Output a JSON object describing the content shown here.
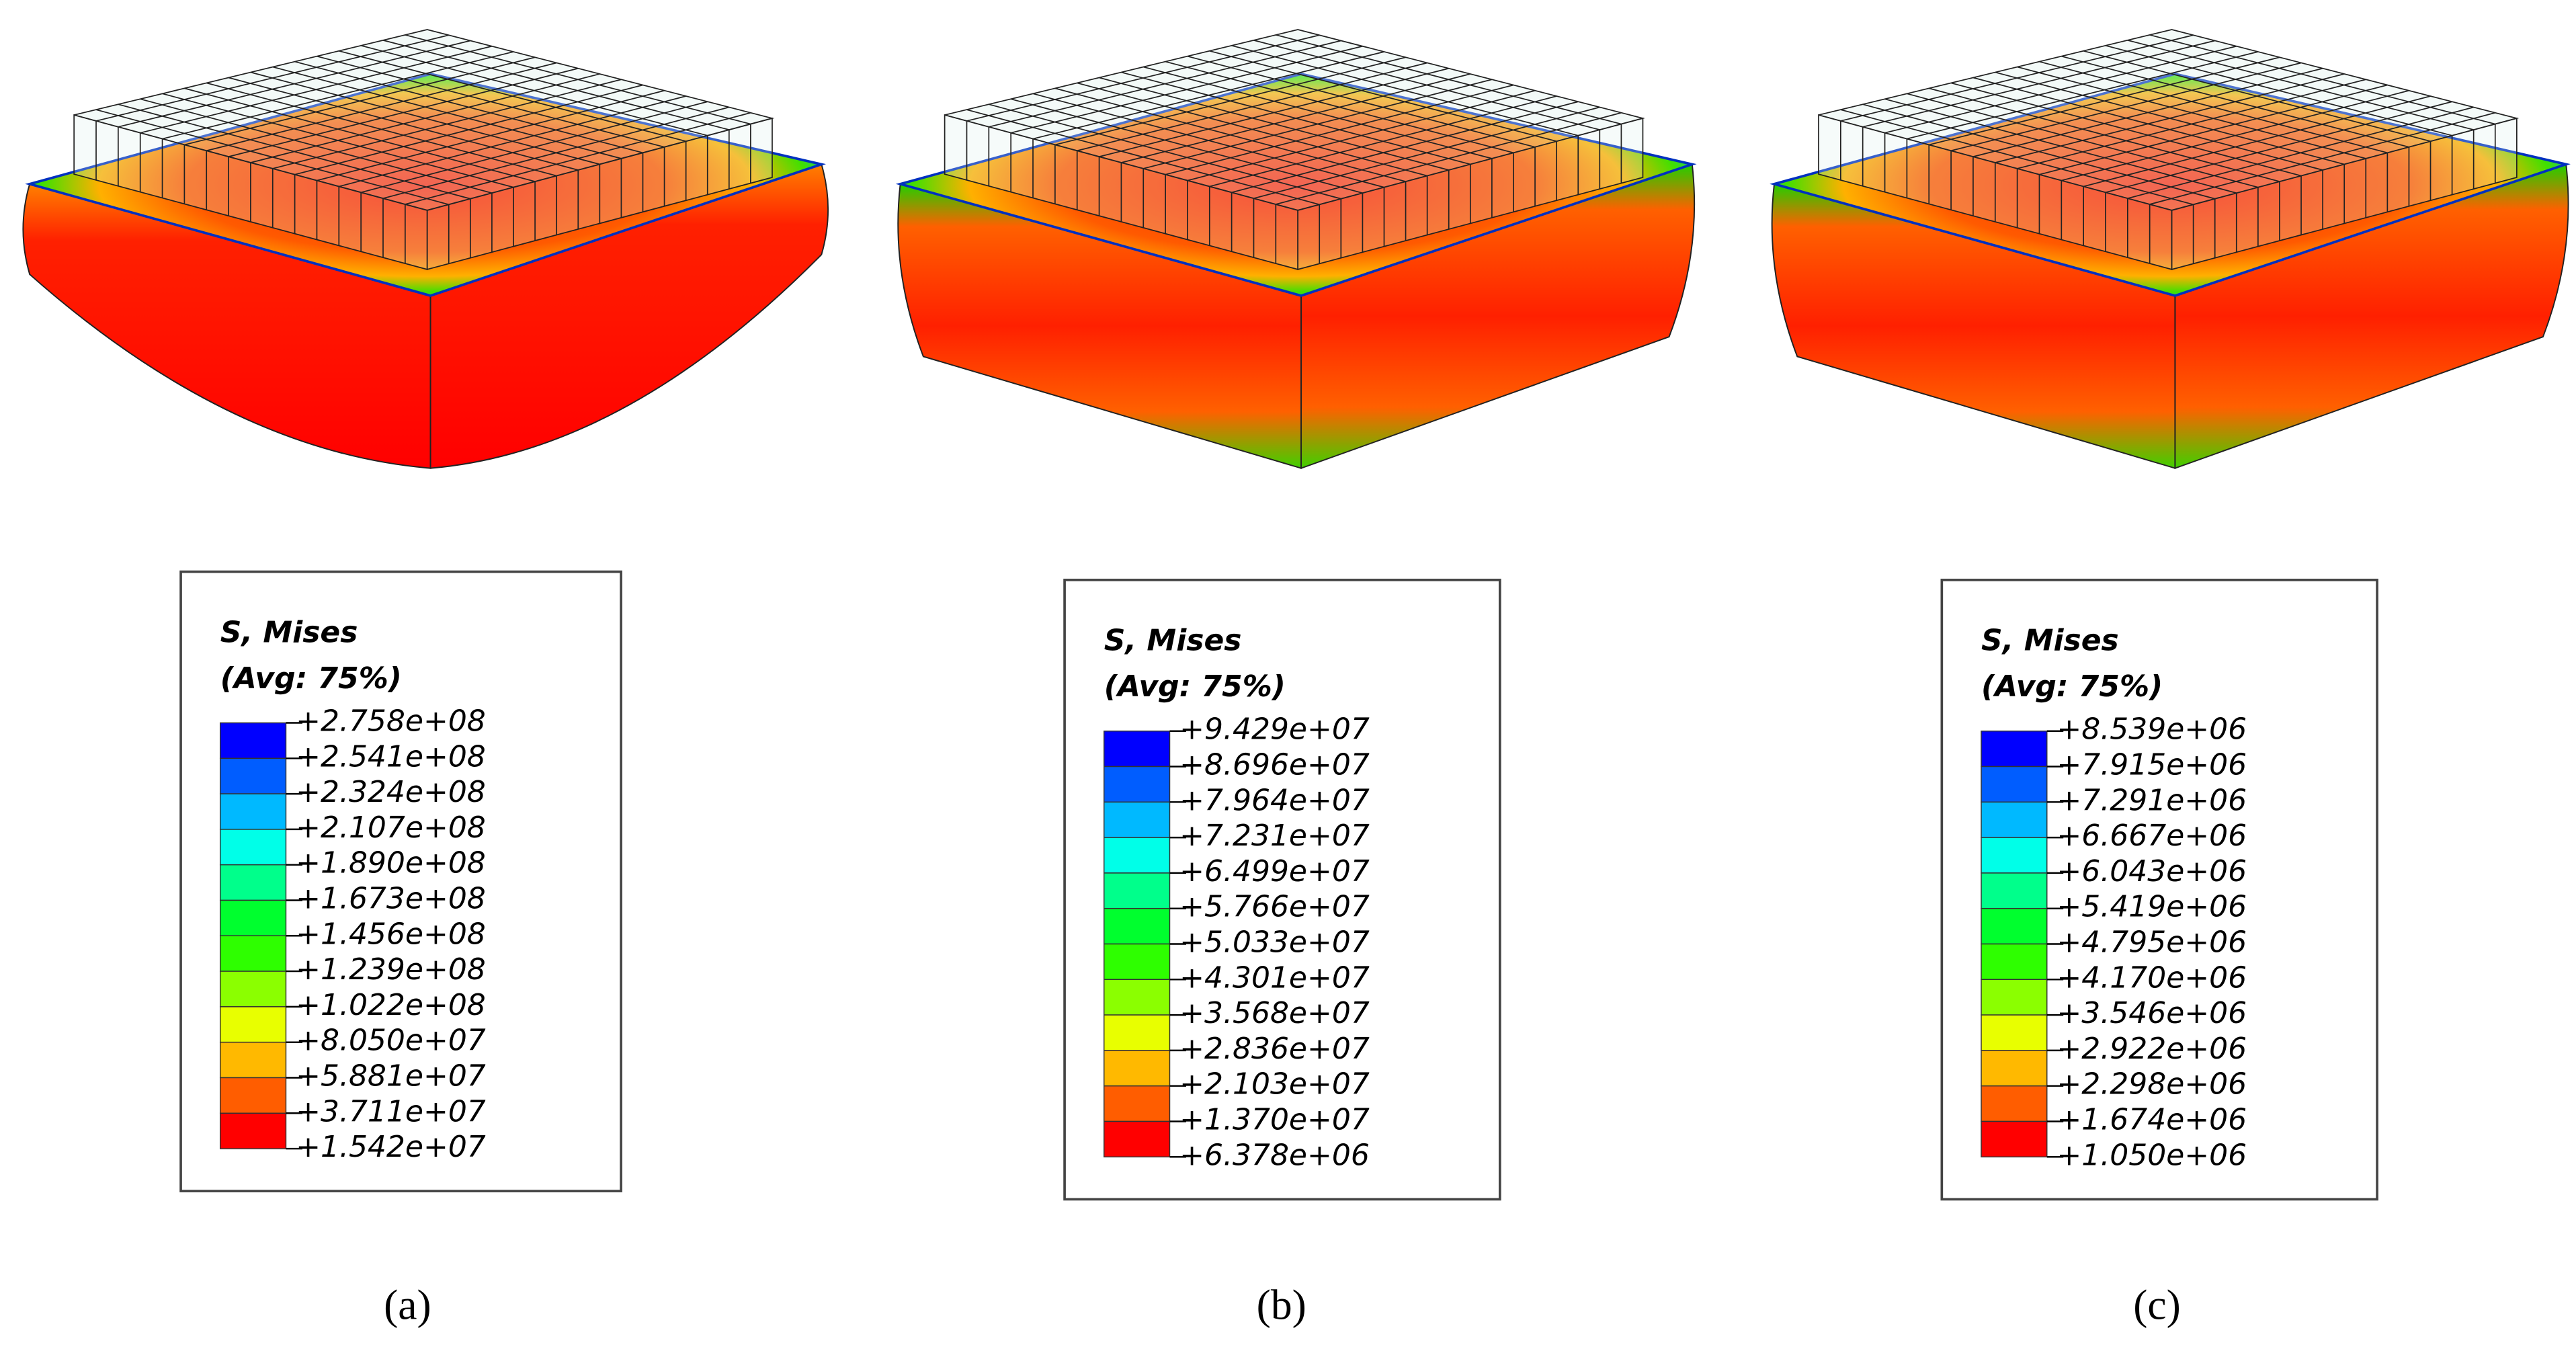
{
  "panels": [
    {
      "label": "(a)",
      "legend": {
        "title": "S, Mises",
        "subtitle": "(Avg: 75%)",
        "values": [
          "+2.758e+08",
          "+2.541e+08",
          "+2.324e+08",
          "+2.107e+08",
          "+1.890e+08",
          "+1.673e+08",
          "+1.456e+08",
          "+1.239e+08",
          "+1.022e+08",
          "+8.050e+07",
          "+5.881e+07",
          "+3.711e+07",
          "+1.542e+07"
        ]
      }
    },
    {
      "label": "(b)",
      "legend": {
        "title": "S, Mises",
        "subtitle": "(Avg: 75%)",
        "values": [
          "+9.429e+07",
          "+8.696e+07",
          "+7.964e+07",
          "+7.231e+07",
          "+6.499e+07",
          "+5.766e+07",
          "+5.033e+07",
          "+4.301e+07",
          "+3.568e+07",
          "+2.836e+07",
          "+2.103e+07",
          "+1.370e+07",
          "+6.378e+06"
        ]
      }
    },
    {
      "label": "(c)",
      "legend": {
        "title": "S, Mises",
        "subtitle": "(Avg: 75%)",
        "values": [
          "+8.539e+06",
          "+7.915e+06",
          "+7.291e+06",
          "+6.667e+06",
          "+6.043e+06",
          "+5.419e+06",
          "+4.795e+06",
          "+4.170e+06",
          "+3.546e+06",
          "+2.922e+06",
          "+2.298e+06",
          "+1.674e+06",
          "+1.050e+06"
        ]
      }
    }
  ]
}
